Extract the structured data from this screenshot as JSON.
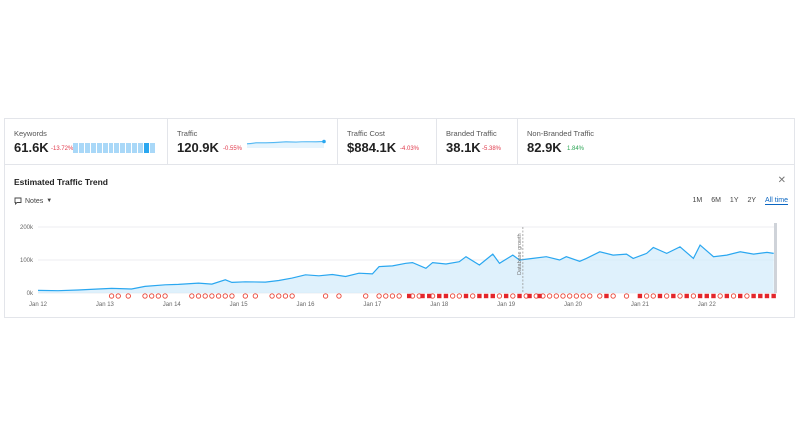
{
  "metrics": {
    "keywords": {
      "label": "Keywords",
      "value": "61.6K",
      "delta": "-13.72%"
    },
    "traffic": {
      "label": "Traffic",
      "value": "120.9K",
      "delta": "-0.55%"
    },
    "traffic_cost": {
      "label": "Traffic Cost",
      "value": "$884.1K",
      "delta": "-4.03%"
    },
    "branded": {
      "label": "Branded Traffic",
      "value": "38.1K",
      "delta": "-5.38%"
    },
    "non_branded": {
      "label": "Non-Branded Traffic",
      "value": "82.9K",
      "delta": "1.84%"
    }
  },
  "trend": {
    "title": "Estimated Traffic Trend",
    "notes_label": "Notes",
    "ranges": [
      "1M",
      "6M",
      "1Y",
      "2Y",
      "All time"
    ],
    "active_range": "All time",
    "annotation": "Database growth"
  },
  "colors": {
    "line": "#2aa7f0",
    "area": "#d4ecfb",
    "negative": "#e0394b",
    "positive": "#2aa453",
    "marker_red": "#e3262b"
  },
  "chart_data": {
    "type": "area",
    "title": "Estimated Traffic Trend",
    "ylim": [
      0,
      200000
    ],
    "y_ticks": [
      "0k",
      "100k",
      "200k"
    ],
    "x_ticks": [
      "Jan 12",
      "Jan 13",
      "Jan 14",
      "Jan 15",
      "Jan 16",
      "Jan 17",
      "Jan 18",
      "Jan 19",
      "Jan 20",
      "Jan 21",
      "Jan 22"
    ],
    "x_start": 2012.0,
    "x_end": 2023.05,
    "grid": true,
    "series": [
      {
        "x": [
          2012.0,
          2012.3,
          2012.6,
          2012.9,
          2013.1,
          2013.4,
          2013.6,
          2013.9,
          2014.1,
          2014.4,
          2014.6,
          2014.8,
          2014.9,
          2015.1,
          2015.4,
          2015.6,
          2015.8,
          2016.0,
          2016.2,
          2016.4,
          2016.6,
          2016.8,
          2017.0,
          2017.1,
          2017.3,
          2017.5,
          2017.6,
          2017.8,
          2017.9,
          2018.1,
          2018.3,
          2018.4,
          2018.6,
          2018.8,
          2018.9,
          2019.1,
          2019.2,
          2019.4,
          2019.6,
          2019.8,
          2019.9,
          2020.1,
          2020.2,
          2020.4,
          2020.6,
          2020.8,
          2020.9,
          2021.1,
          2021.2,
          2021.4,
          2021.6,
          2021.8,
          2021.9,
          2022.1,
          2022.3,
          2022.5,
          2022.7,
          2022.9,
          2023.0
        ],
        "values": [
          8000,
          7000,
          9000,
          12000,
          14000,
          12000,
          20000,
          25000,
          26000,
          30000,
          27000,
          40000,
          32000,
          34000,
          33000,
          38000,
          45000,
          55000,
          52000,
          56000,
          50000,
          60000,
          58000,
          80000,
          82000,
          90000,
          92000,
          75000,
          92000,
          88000,
          95000,
          110000,
          85000,
          118000,
          90000,
          115000,
          100000,
          105000,
          110000,
          100000,
          110000,
          96000,
          105000,
          125000,
          115000,
          118000,
          105000,
          120000,
          138000,
          120000,
          140000,
          105000,
          145000,
          110000,
          115000,
          125000,
          118000,
          123000,
          120000
        ]
      }
    ],
    "markers_google": [
      2013.1,
      2013.2,
      2013.35,
      2013.6,
      2013.7,
      2013.8,
      2013.9,
      2014.3,
      2014.4,
      2014.5,
      2014.6,
      2014.7,
      2014.8,
      2014.9,
      2015.1,
      2015.25,
      2015.5,
      2015.6,
      2015.7,
      2015.8,
      2016.3,
      2016.5,
      2016.9,
      2017.1,
      2017.2,
      2017.3,
      2017.4,
      2017.6,
      2017.7,
      2017.9,
      2018.2,
      2018.3,
      2018.5,
      2018.9,
      2019.1,
      2019.3,
      2019.45,
      2019.55,
      2019.65,
      2019.75,
      2019.85,
      2019.95,
      2020.05,
      2020.15,
      2020.25,
      2020.4,
      2020.6,
      2020.8,
      2021.1,
      2021.2,
      2021.4,
      2021.6,
      2021.8,
      2022.2,
      2022.4,
      2022.6
    ],
    "markers_flag": [
      2017.55,
      2017.75,
      2017.85,
      2018.0,
      2018.1,
      2018.4,
      2018.6,
      2018.7,
      2018.8,
      2019.0,
      2019.2,
      2019.35,
      2019.5,
      2020.5,
      2021.0,
      2021.3,
      2021.5,
      2021.7,
      2021.9,
      2022.0,
      2022.1,
      2022.3,
      2022.5,
      2022.7,
      2022.8,
      2022.9,
      2023.0
    ],
    "annotation_x": 2019.25
  }
}
